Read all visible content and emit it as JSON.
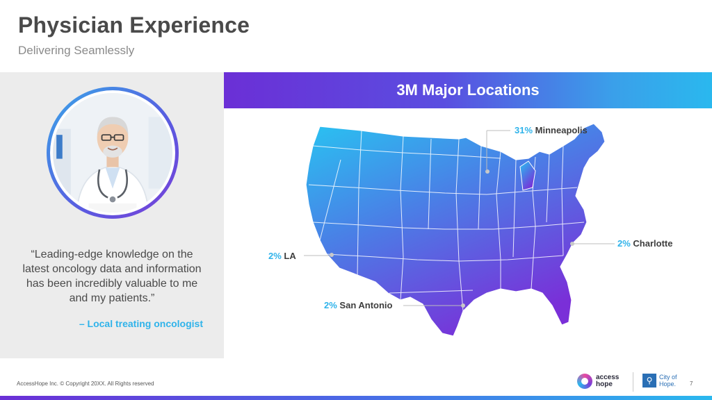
{
  "header": {
    "title": "Physician Experience",
    "subtitle": "Delivering Seamlessly"
  },
  "testimonial": {
    "quote": "“Leading-edge knowledge on the latest oncology data and information has been incredibly valuable to me and my patients.”",
    "attribution": "– Local treating oncologist"
  },
  "banner": {
    "title": "3M Major Locations"
  },
  "locations": [
    {
      "pct": "31%",
      "name": "Minneapolis"
    },
    {
      "pct": "2%",
      "name": "LA"
    },
    {
      "pct": "2%",
      "name": "Charlotte"
    },
    {
      "pct": "2%",
      "name": "San Antonio"
    }
  ],
  "footer": {
    "copyright": "AccessHope Inc. © Copyright 20XX. All Rights reserved",
    "page_number": "7",
    "logo_access_line1": "access",
    "logo_access_line2": "hope",
    "logo_coh_line1": "City of",
    "logo_coh_line2": "Hope."
  },
  "colors": {
    "accent_blue": "#2fb3ea",
    "accent_purple": "#6b2fd6",
    "title_gray": "#4a4a4a"
  }
}
